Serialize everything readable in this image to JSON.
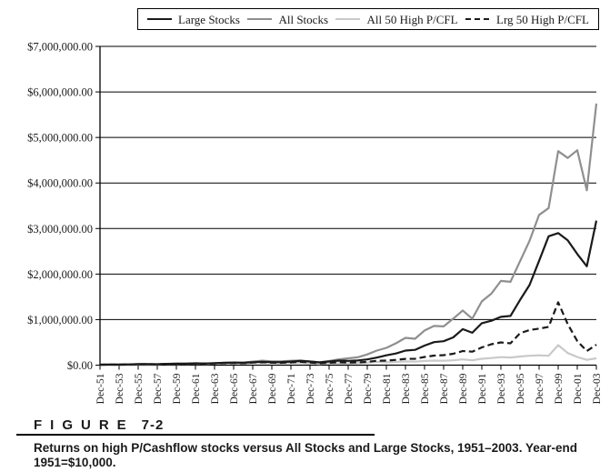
{
  "legend": {
    "items": [
      {
        "label": "Large Stocks"
      },
      {
        "label": "All Stocks"
      },
      {
        "label": "All 50 High P/CFL"
      },
      {
        "label": "Lrg 50 High P/CFL"
      }
    ]
  },
  "figure": {
    "label": "FIGURE",
    "number": "7-2",
    "caption": "Returns on high P/Cashflow stocks versus All Stocks and Large Stocks, 1951–2003. Year-end 1951=$10,000."
  },
  "chart_data": {
    "type": "line",
    "title": "",
    "xlabel": "",
    "ylabel": "",
    "ylim": [
      0,
      7000000
    ],
    "grid": "horizontal",
    "legend_position": "top",
    "x_start_year": 1951,
    "x_end_year": 2003,
    "x_tick_labels": [
      "Dec-51",
      "Dec-53",
      "Dec-55",
      "Dec-57",
      "Dec-59",
      "Dec-61",
      "Dec-63",
      "Dec-65",
      "Dec-67",
      "Dec-69",
      "Dec-71",
      "Dec-73",
      "Dec-75",
      "Dec-77",
      "Dec-79",
      "Dec-81",
      "Dec-83",
      "Dec-85",
      "Dec-87",
      "Dec-89",
      "Dec-91",
      "Dec-93",
      "Dec-95",
      "Dec-97",
      "Dec-99",
      "Dec-01",
      "Dec-03"
    ],
    "y_ticks": [
      {
        "value": 0,
        "label": "$0.00"
      },
      {
        "value": 1000000,
        "label": "$1,000,000.00"
      },
      {
        "value": 2000000,
        "label": "$2,000,000.00"
      },
      {
        "value": 3000000,
        "label": "$3,000,000.00"
      },
      {
        "value": 4000000,
        "label": "$4,000,000.00"
      },
      {
        "value": 5000000,
        "label": "$5,000,000.00"
      },
      {
        "value": 6000000,
        "label": "$6,000,000.00"
      },
      {
        "value": 7000000,
        "label": "$7,000,000.00"
      }
    ],
    "draw_order": [
      2,
      1,
      0,
      3
    ],
    "series": [
      {
        "name": "Large Stocks",
        "color": "#1a1a1a",
        "dash": null,
        "width": 2.2,
        "values": [
          10000,
          11300,
          11200,
          16500,
          21000,
          22400,
          20000,
          28600,
          31200,
          31500,
          40000,
          36500,
          44500,
          51800,
          56500,
          52500,
          64500,
          71000,
          65000,
          67500,
          77500,
          92000,
          79000,
          59000,
          80500,
          100000,
          94500,
          101000,
          125000,
          165000,
          215000,
          255000,
          320000,
          335000,
          430000,
          505000,
          525000,
          610000,
          790000,
          710000,
          920000,
          975000,
          1060000,
          1080000,
          1430000,
          1760000,
          2290000,
          2830000,
          2900000,
          2740000,
          2440000,
          2170000,
          3173724
        ]
      },
      {
        "name": "All Stocks",
        "color": "#8f8f8f",
        "dash": null,
        "width": 2.2,
        "values": [
          10000,
          11000,
          11100,
          16200,
          19400,
          20800,
          18300,
          26800,
          31100,
          31500,
          39800,
          35200,
          41500,
          48000,
          59000,
          55000,
          78000,
          98000,
          83000,
          81000,
          96000,
          104000,
          80000,
          62000,
          90000,
          126000,
          150000,
          172000,
          235000,
          320000,
          380000,
          480000,
          600000,
          580000,
          760000,
          860000,
          850000,
          1020000,
          1200000,
          1020000,
          1400000,
          1570000,
          1850000,
          1830000,
          2280000,
          2730000,
          3300000,
          3450000,
          4700000,
          4550000,
          4720000,
          3840000,
          5743706
        ]
      },
      {
        "name": "All 50 High P/CFL",
        "color": "#c9c9c9",
        "dash": null,
        "width": 2.2,
        "values": [
          10000,
          10800,
          10500,
          15000,
          18200,
          18900,
          15800,
          23500,
          26400,
          25900,
          32400,
          27200,
          31800,
          36300,
          42500,
          38500,
          53800,
          64500,
          52900,
          44900,
          52700,
          57400,
          40200,
          27300,
          36900,
          44300,
          42100,
          45400,
          55400,
          70900,
          62400,
          69300,
          81800,
          75300,
          91100,
          99200,
          95300,
          105000,
          125000,
          105000,
          140000,
          155000,
          175000,
          168000,
          190000,
          205000,
          215000,
          205000,
          440000,
          265000,
          180000,
          115000,
          150000
        ]
      },
      {
        "name": "Lrg 50 High P/CFL",
        "color": "#1a1a1a",
        "dash": "7,4",
        "width": 2.2,
        "values": [
          10000,
          11000,
          10900,
          15800,
          19800,
          20900,
          18100,
          25900,
          28500,
          28800,
          36200,
          31900,
          38300,
          44000,
          48500,
          44600,
          55800,
          61400,
          54700,
          52000,
          60300,
          72400,
          57900,
          39400,
          52000,
          62400,
          56800,
          60200,
          72200,
          95300,
          100000,
          115000,
          138000,
          140000,
          180000,
          210000,
          220000,
          250000,
          310000,
          295000,
          390000,
          460000,
          500000,
          480000,
          700000,
          770000,
          800000,
          840000,
          1380000,
          900000,
          530000,
          310000,
          450000
        ]
      }
    ]
  }
}
